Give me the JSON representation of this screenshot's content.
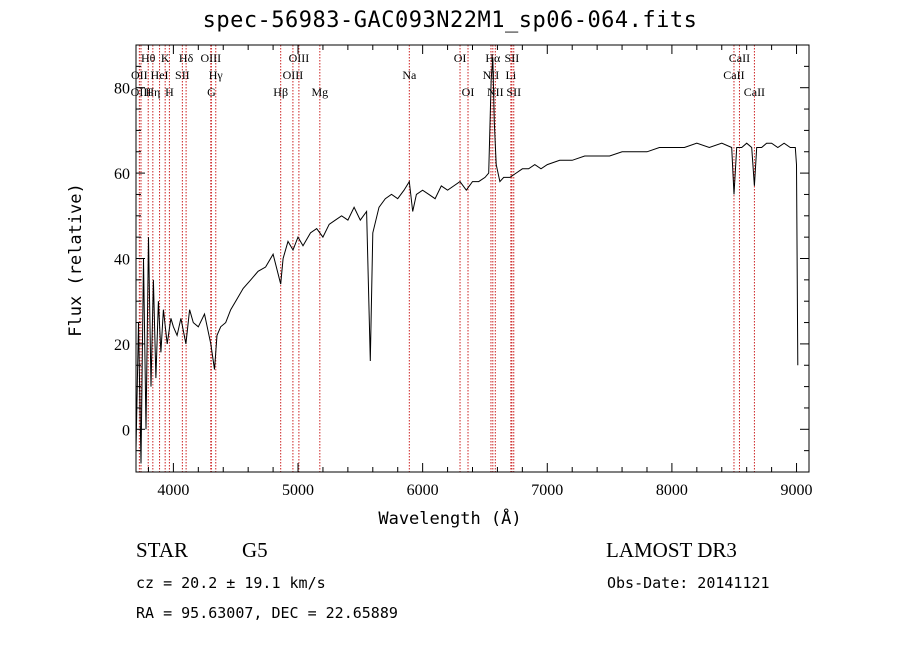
{
  "chart_data": {
    "type": "line",
    "title": "spec-56983-GAC093N22M1_sp06-064.fits",
    "xlabel": "Wavelength (Å)",
    "ylabel": "Flux (relative)",
    "xlim": [
      3700,
      9100
    ],
    "ylim": [
      -10,
      90
    ],
    "xticks": [
      4000,
      5000,
      6000,
      7000,
      8000,
      9000
    ],
    "yticks": [
      0,
      20,
      40,
      60,
      80
    ],
    "series": [
      {
        "name": "flux",
        "x": [
          3700,
          3720,
          3740,
          3760,
          3780,
          3800,
          3820,
          3840,
          3860,
          3880,
          3900,
          3920,
          3950,
          3980,
          4000,
          4030,
          4060,
          4100,
          4130,
          4160,
          4200,
          4250,
          4300,
          4330,
          4350,
          4380,
          4420,
          4460,
          4500,
          4560,
          4620,
          4680,
          4740,
          4800,
          4861,
          4880,
          4920,
          4960,
          5000,
          5040,
          5100,
          5150,
          5200,
          5250,
          5300,
          5350,
          5400,
          5450,
          5500,
          5550,
          5580,
          5600,
          5650,
          5700,
          5750,
          5800,
          5850,
          5893,
          5920,
          5950,
          6000,
          6050,
          6100,
          6150,
          6200,
          6250,
          6300,
          6350,
          6400,
          6450,
          6500,
          6530,
          6550,
          6563,
          6575,
          6590,
          6620,
          6650,
          6700,
          6750,
          6800,
          6850,
          6900,
          6950,
          7000,
          7100,
          7200,
          7300,
          7400,
          7500,
          7600,
          7700,
          7800,
          7900,
          8000,
          8100,
          8200,
          8300,
          8400,
          8480,
          8498,
          8520,
          8542,
          8560,
          8600,
          8640,
          8662,
          8680,
          8720,
          8760,
          8800,
          8850,
          8900,
          8950,
          8990,
          9000,
          9010
        ],
        "values": [
          -5,
          25,
          -8,
          40,
          0,
          45,
          10,
          35,
          12,
          30,
          18,
          28,
          20,
          26,
          24,
          22,
          26,
          20,
          28,
          25,
          24,
          27,
          20,
          14,
          22,
          24,
          25,
          28,
          30,
          33,
          35,
          37,
          38,
          41,
          34,
          40,
          44,
          42,
          45,
          43,
          46,
          47,
          45,
          48,
          49,
          50,
          49,
          52,
          49,
          51,
          16,
          46,
          52,
          54,
          55,
          54,
          56,
          58,
          51,
          55,
          56,
          55,
          54,
          57,
          56,
          57,
          58,
          56,
          58,
          58,
          59,
          60,
          82,
          87,
          72,
          62,
          58,
          59,
          59,
          60,
          61,
          61,
          62,
          61,
          62,
          63,
          63,
          64,
          64,
          64,
          65,
          65,
          65,
          66,
          66,
          66,
          67,
          66,
          67,
          66,
          55,
          66,
          66,
          66,
          67,
          66,
          57,
          66,
          66,
          67,
          67,
          66,
          67,
          66,
          66,
          62,
          15
        ]
      }
    ],
    "spectral_lines": [
      {
        "label": "Hθ",
        "x": 3798,
        "row": 1
      },
      {
        "label": "OII",
        "x": 3727,
        "row": 2
      },
      {
        "label": "OIII",
        "x": 3740,
        "row": 3
      },
      {
        "label": "Hη",
        "x": 3835,
        "row": 3
      },
      {
        "label": "HeI",
        "x": 3889,
        "row": 2
      },
      {
        "label": "K",
        "x": 3934,
        "row": 1
      },
      {
        "label": "H",
        "x": 3968,
        "row": 3
      },
      {
        "label": "SII",
        "x": 4072,
        "row": 2
      },
      {
        "label": "Hδ",
        "x": 4102,
        "row": 1
      },
      {
        "label": "OIII",
        "x": 4300,
        "row": 1
      },
      {
        "label": "Hγ",
        "x": 4340,
        "row": 2
      },
      {
        "label": "G",
        "x": 4305,
        "row": 3
      },
      {
        "label": "Hβ",
        "x": 4861,
        "row": 3
      },
      {
        "label": "OIII",
        "x": 4959,
        "row": 2
      },
      {
        "label": "OIII",
        "x": 5007,
        "row": 1
      },
      {
        "label": "Mg",
        "x": 5175,
        "row": 3
      },
      {
        "label": "Na",
        "x": 5893,
        "row": 2
      },
      {
        "label": "OI",
        "x": 6300,
        "row": 1
      },
      {
        "label": "OI",
        "x": 6364,
        "row": 3
      },
      {
        "label": "Hα",
        "x": 6563,
        "row": 1
      },
      {
        "label": "NII",
        "x": 6548,
        "row": 2
      },
      {
        "label": "NII",
        "x": 6583,
        "row": 3
      },
      {
        "label": "SII",
        "x": 6716,
        "row": 1
      },
      {
        "label": "Li",
        "x": 6708,
        "row": 2
      },
      {
        "label": "SII",
        "x": 6731,
        "row": 3
      },
      {
        "label": "CaII",
        "x": 8498,
        "row": 2
      },
      {
        "label": "CaII",
        "x": 8542,
        "row": 1
      },
      {
        "label": "CaII",
        "x": 8662,
        "row": 3
      }
    ]
  },
  "info": {
    "object_class": "STAR",
    "subclass": "G5",
    "survey": "LAMOST DR3",
    "redshift": "cz = 20.2 ± 19.1 km/s",
    "obs_date": "Obs-Date: 20141121",
    "coords": "RA =  95.63007, DEC =  22.65889"
  }
}
